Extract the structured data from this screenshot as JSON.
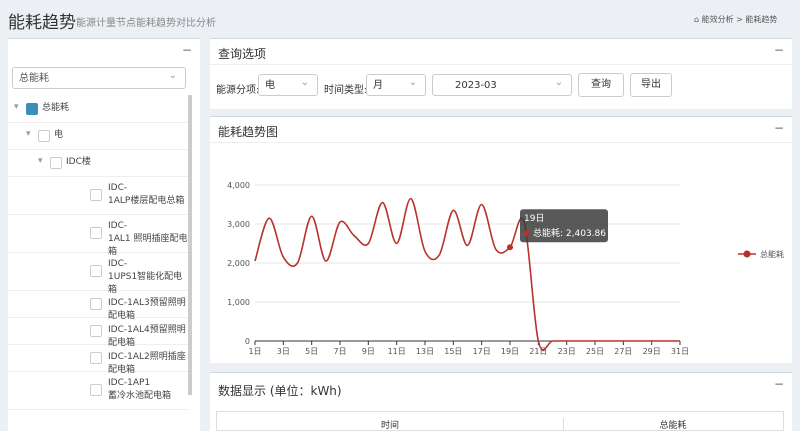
{
  "header": {
    "title": "能耗趋势",
    "subtitle": "能源计量节点能耗趋势对比分析",
    "breadcrumb": [
      "能效分析",
      "能耗趋势"
    ]
  },
  "sidebar": {
    "select": "总能耗",
    "tree": {
      "lines": [
        "总能耗"
      ],
      "checked": true,
      "children": [
        {
          "lines": [
            "电"
          ],
          "checked": false,
          "children": [
            {
              "lines": [
                "IDC楼"
              ],
              "checked": false,
              "children": [
                {
                  "lines": [
                    "IDC-",
                    "1ALP楼层配电总箱"
                  ],
                  "checked": false
                },
                {
                  "lines": [
                    "IDC-",
                    "1AL1 照明插座配电箱"
                  ],
                  "checked": false
                },
                {
                  "lines": [
                    "IDC-",
                    "1UPS1智能化配电箱"
                  ],
                  "checked": false
                },
                {
                  "lines": [
                    "IDC-1AL3预留照明配电箱"
                  ],
                  "checked": false
                },
                {
                  "lines": [
                    "IDC-1AL4预留照明配电箱"
                  ],
                  "checked": false
                },
                {
                  "lines": [
                    "IDC-1AL2照明插座配电箱"
                  ],
                  "checked": false
                },
                {
                  "lines": [
                    "IDC-1AP1",
                    "蓄冷水池配电箱"
                  ],
                  "checked": false
                }
              ]
            }
          ]
        }
      ]
    }
  },
  "query": {
    "title": "查询选项",
    "energy_label": "能源分项:",
    "energy_value": "电",
    "time_label": "时间类型:",
    "time_value": "月",
    "date": "2023-03",
    "search": "查询",
    "export": "导出"
  },
  "chart_panel": {
    "title": "能耗趋势图"
  },
  "chart_data": {
    "type": "line",
    "categories": [
      "1日",
      null,
      "3日",
      null,
      "5日",
      null,
      "7日",
      null,
      "9日",
      null,
      "11日",
      null,
      "13日",
      null,
      "15日",
      null,
      "17日",
      null,
      "19日",
      null,
      "21日",
      null,
      "23日",
      null,
      "25日",
      null,
      "27日",
      null,
      "29日",
      null,
      "31日"
    ],
    "series": [
      {
        "name": "总能耗",
        "color": "#b8322d",
        "values": [
          2050,
          3150,
          2150,
          2000,
          3200,
          2050,
          3050,
          2700,
          2500,
          3550,
          2500,
          3650,
          2300,
          2200,
          3350,
          2450,
          3500,
          2350,
          2403.86,
          3050,
          0,
          0,
          0,
          0,
          0,
          0,
          0,
          0,
          0,
          0,
          0
        ],
        "value_labels": [
          null,
          null,
          null,
          null,
          null,
          null,
          null,
          null,
          null,
          null,
          null,
          null,
          null,
          null,
          null,
          null,
          null,
          null,
          "2,403.86",
          null,
          null,
          null,
          null,
          null,
          null,
          null,
          null,
          null,
          null,
          null,
          null
        ]
      }
    ],
    "ylim": [
      0,
      4000
    ],
    "yticks": [
      0,
      {
        "value": 1000,
        "label": "1,000"
      },
      {
        "value": 2000,
        "label": "2,000"
      },
      {
        "value": 3000,
        "label": "3,000"
      },
      {
        "value": 4000,
        "label": "4,000"
      }
    ],
    "grid": true,
    "legend": "right",
    "tooltip_category": "19日"
  },
  "table": {
    "title": "数据显示 (单位：kWh)",
    "columns": [
      "时间",
      "总能耗"
    ]
  }
}
